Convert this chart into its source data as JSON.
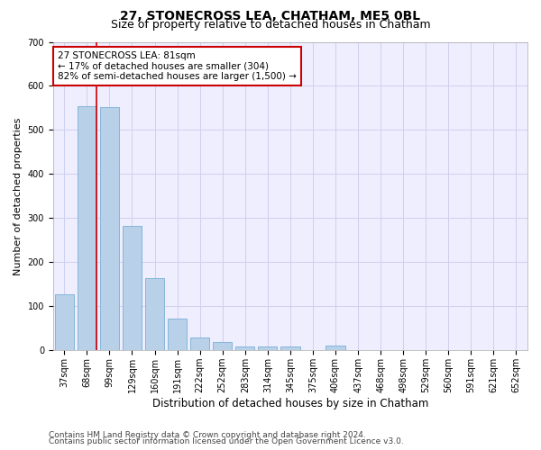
{
  "title": "27, STONECROSS LEA, CHATHAM, ME5 0BL",
  "subtitle": "Size of property relative to detached houses in Chatham",
  "xlabel": "Distribution of detached houses by size in Chatham",
  "ylabel": "Number of detached properties",
  "categories": [
    "37sqm",
    "68sqm",
    "99sqm",
    "129sqm",
    "160sqm",
    "191sqm",
    "222sqm",
    "252sqm",
    "283sqm",
    "314sqm",
    "345sqm",
    "375sqm",
    "406sqm",
    "437sqm",
    "468sqm",
    "498sqm",
    "529sqm",
    "560sqm",
    "591sqm",
    "621sqm",
    "652sqm"
  ],
  "values": [
    128,
    555,
    552,
    283,
    164,
    72,
    30,
    18,
    9,
    9,
    9,
    0,
    10,
    0,
    0,
    0,
    0,
    0,
    0,
    0,
    0
  ],
  "bar_color": "#b8d0e8",
  "bar_edgecolor": "#7aafd4",
  "grid_color": "#d0d0ee",
  "background_color": "#eeeeff",
  "annotation_line1": "27 STONECROSS LEA: 81sqm",
  "annotation_line2": "← 17% of detached houses are smaller (304)",
  "annotation_line3": "82% of semi-detached houses are larger (1,500) →",
  "annotation_box_facecolor": "#ffffff",
  "annotation_box_edgecolor": "#cc0000",
  "vline_color": "#cc0000",
  "vline_x_index": 1.425,
  "ylim": [
    0,
    700
  ],
  "yticks": [
    0,
    100,
    200,
    300,
    400,
    500,
    600,
    700
  ],
  "title_fontsize": 10,
  "subtitle_fontsize": 9,
  "xlabel_fontsize": 8.5,
  "ylabel_fontsize": 8,
  "tick_fontsize": 7,
  "annotation_fontsize": 7.5,
  "footer_fontsize": 6.5,
  "footer1": "Contains HM Land Registry data © Crown copyright and database right 2024.",
  "footer2": "Contains public sector information licensed under the Open Government Licence v3.0."
}
